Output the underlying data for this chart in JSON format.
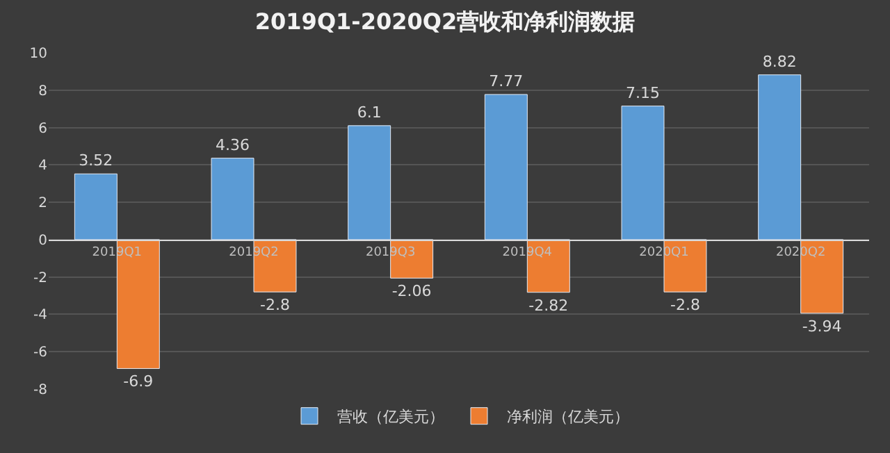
{
  "chart_data": {
    "type": "bar",
    "title": "2019Q1-2020Q2营收和净利润数据",
    "categories": [
      "2019Q1",
      "2019Q2",
      "2019Q3",
      "2019Q4",
      "2020Q1",
      "2020Q2"
    ],
    "series": [
      {
        "name": "营收（亿美元）",
        "color": "#5b9bd5",
        "values": [
          3.52,
          4.36,
          6.1,
          7.77,
          7.15,
          8.82
        ]
      },
      {
        "name": "净利润（亿美元）",
        "color": "#ed7d31",
        "values": [
          -6.9,
          -2.8,
          -2.06,
          -2.82,
          -2.8,
          -3.94
        ]
      }
    ],
    "ylim": [
      -8,
      10
    ],
    "yticks": [
      -8,
      -6,
      -4,
      -2,
      0,
      2,
      4,
      6,
      8,
      10
    ],
    "grid": "y",
    "legend": "bottom",
    "data_labels": true
  }
}
